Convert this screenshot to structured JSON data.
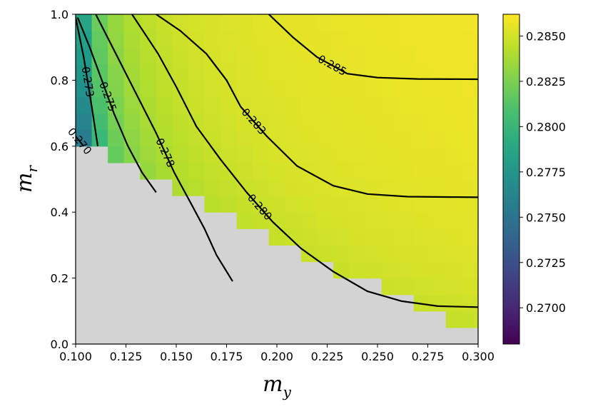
{
  "chart_data": {
    "type": "heatmap",
    "title": "",
    "xlabel": "m",
    "xlabel_sub": "y",
    "ylabel": "m",
    "ylabel_sub": "r",
    "xlim": [
      0.1,
      0.3
    ],
    "ylim": [
      0.0,
      1.0
    ],
    "x_ticks": [
      "0.100",
      "0.125",
      "0.150",
      "0.175",
      "0.200",
      "0.225",
      "0.250",
      "0.275",
      "0.300"
    ],
    "y_ticks": [
      "0.0",
      "0.2",
      "0.4",
      "0.6",
      "0.8",
      "1.0"
    ],
    "colormap": "viridis",
    "colorbar": {
      "min": 0.268,
      "max": 0.2862,
      "ticks": [
        "0.2700",
        "0.2725",
        "0.2750",
        "0.2775",
        "0.2800",
        "0.2825",
        "0.2850"
      ]
    },
    "invalid_region_color": "#d3d3d3",
    "grid": false,
    "contours": [
      {
        "label": "0.270",
        "points": [
          [
            0.1,
            0.63
          ],
          [
            0.104,
            0.6
          ]
        ]
      },
      {
        "label": "0.273",
        "points": [
          [
            0.1,
            0.99
          ],
          [
            0.104,
            0.87
          ],
          [
            0.108,
            0.72
          ],
          [
            0.111,
            0.6
          ]
        ]
      },
      {
        "label": "0.275",
        "points": [
          [
            0.101,
            0.99
          ],
          [
            0.107,
            0.9
          ],
          [
            0.113,
            0.8
          ],
          [
            0.119,
            0.7
          ],
          [
            0.126,
            0.6
          ],
          [
            0.133,
            0.52
          ],
          [
            0.14,
            0.46
          ]
        ]
      },
      {
        "label": "0.278",
        "points": [
          [
            0.11,
            1.0
          ],
          [
            0.12,
            0.88
          ],
          [
            0.13,
            0.76
          ],
          [
            0.14,
            0.64
          ],
          [
            0.149,
            0.52
          ],
          [
            0.157,
            0.43
          ],
          [
            0.164,
            0.35
          ],
          [
            0.17,
            0.27
          ],
          [
            0.178,
            0.19
          ]
        ]
      },
      {
        "label": "0.280",
        "points": [
          [
            0.128,
            1.0
          ],
          [
            0.141,
            0.88
          ],
          [
            0.15,
            0.78
          ],
          [
            0.16,
            0.66
          ],
          [
            0.172,
            0.56
          ],
          [
            0.185,
            0.46
          ],
          [
            0.198,
            0.37
          ],
          [
            0.212,
            0.29
          ],
          [
            0.228,
            0.22
          ],
          [
            0.245,
            0.16
          ],
          [
            0.262,
            0.13
          ],
          [
            0.28,
            0.115
          ],
          [
            0.3,
            0.112
          ]
        ]
      },
      {
        "label": "0.283",
        "points": [
          [
            0.14,
            1.0
          ],
          [
            0.152,
            0.95
          ],
          [
            0.165,
            0.88
          ],
          [
            0.175,
            0.8
          ],
          [
            0.182,
            0.72
          ],
          [
            0.195,
            0.63
          ],
          [
            0.21,
            0.54
          ],
          [
            0.228,
            0.48
          ],
          [
            0.245,
            0.455
          ],
          [
            0.265,
            0.447
          ],
          [
            0.3,
            0.445
          ]
        ]
      },
      {
        "label": "0.285",
        "points": [
          [
            0.196,
            1.0
          ],
          [
            0.208,
            0.93
          ],
          [
            0.22,
            0.87
          ],
          [
            0.235,
            0.82
          ],
          [
            0.25,
            0.808
          ],
          [
            0.27,
            0.804
          ],
          [
            0.3,
            0.803
          ]
        ]
      }
    ]
  }
}
